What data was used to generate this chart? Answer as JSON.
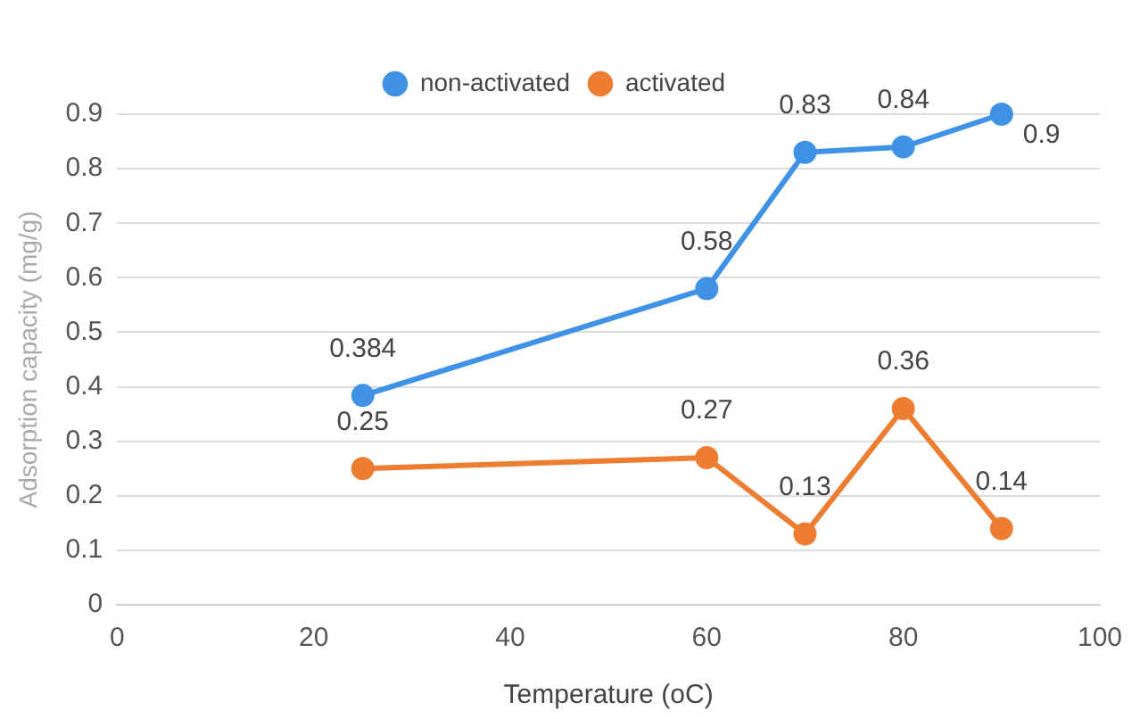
{
  "chart_data": {
    "type": "line",
    "xlabel": "Temperature (oC)",
    "ylabel": "Adsorption capacity (mg/g)",
    "x": [
      25,
      60,
      70,
      80,
      90
    ],
    "series": [
      {
        "name": "non-activated",
        "color": "#3f92e6",
        "values": [
          0.384,
          0.58,
          0.83,
          0.84,
          0.9
        ]
      },
      {
        "name": "activated",
        "color": "#ed7d31",
        "values": [
          0.25,
          0.27,
          0.13,
          0.36,
          0.14
        ]
      }
    ],
    "xlim": [
      0,
      100
    ],
    "xticks": [
      0,
      20,
      40,
      60,
      80,
      100
    ],
    "ylim": [
      0,
      0.9
    ],
    "yticks": [
      0,
      0.1,
      0.2,
      0.3,
      0.4,
      0.5,
      0.6,
      0.7,
      0.8,
      0.9
    ],
    "grid": "y",
    "legend": "top",
    "marker": "circle",
    "line_style": "solid",
    "data_labels": true
  }
}
